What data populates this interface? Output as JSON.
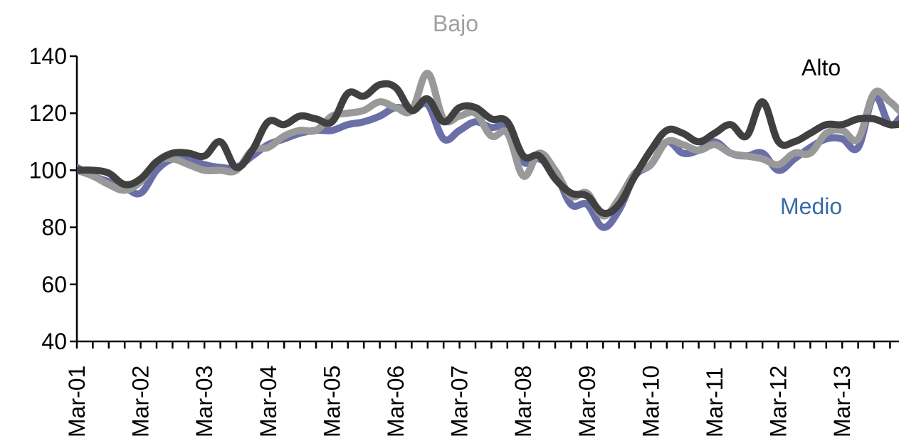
{
  "chart_data": {
    "type": "line",
    "title": "",
    "xlabel": "",
    "ylabel": "",
    "ylim": [
      40,
      140
    ],
    "yticks": [
      40,
      60,
      80,
      100,
      120,
      140
    ],
    "grid": false,
    "x_tick_labels": [
      "Mar-01",
      "Mar-02",
      "Mar-03",
      "Mar-04",
      "Mar-05",
      "Mar-06",
      "Mar-07",
      "Mar-08",
      "Mar-09",
      "Mar-10",
      "Mar-11",
      "Mar-12",
      "Mar-13"
    ],
    "x_range_quarters": [
      0,
      51
    ],
    "series": [
      {
        "name": "Alto",
        "color": "#404040",
        "points": [
          [
            0,
            100
          ],
          [
            1,
            100
          ],
          [
            2,
            99
          ],
          [
            3,
            95
          ],
          [
            4,
            97
          ],
          [
            5,
            103
          ],
          [
            6,
            106
          ],
          [
            7,
            106
          ],
          [
            8,
            105
          ],
          [
            9,
            110
          ],
          [
            10,
            101
          ],
          [
            11,
            107
          ],
          [
            12,
            117
          ],
          [
            13,
            116
          ],
          [
            14,
            119
          ],
          [
            15,
            118
          ],
          [
            16,
            117
          ],
          [
            17,
            127
          ],
          [
            18,
            126
          ],
          [
            19,
            130
          ],
          [
            20,
            129
          ],
          [
            21,
            121
          ],
          [
            22,
            125
          ],
          [
            23,
            117
          ],
          [
            24,
            122
          ],
          [
            25,
            122
          ],
          [
            26,
            118
          ],
          [
            27,
            117
          ],
          [
            28,
            105
          ],
          [
            29,
            105
          ],
          [
            30,
            97
          ],
          [
            31,
            92
          ],
          [
            32,
            91
          ],
          [
            33,
            85
          ],
          [
            34,
            88
          ],
          [
            35,
            98
          ],
          [
            36,
            107
          ],
          [
            37,
            114
          ],
          [
            38,
            113
          ],
          [
            39,
            110
          ],
          [
            40,
            113
          ],
          [
            41,
            116
          ],
          [
            42,
            112
          ],
          [
            43,
            124
          ],
          [
            44,
            110
          ],
          [
            45,
            110
          ],
          [
            46,
            113
          ],
          [
            47,
            116
          ],
          [
            48,
            116
          ],
          [
            49,
            118
          ],
          [
            50,
            118
          ],
          [
            51,
            116
          ],
          [
            52,
            116
          ],
          [
            53,
            113
          ]
        ]
      },
      {
        "name": "Medio",
        "color": "#6a6fa8",
        "points": [
          [
            0,
            101
          ],
          [
            1,
            98
          ],
          [
            2,
            96
          ],
          [
            3,
            94
          ],
          [
            4,
            92
          ],
          [
            5,
            100
          ],
          [
            6,
            104
          ],
          [
            7,
            104
          ],
          [
            8,
            102
          ],
          [
            9,
            101
          ],
          [
            10,
            101
          ],
          [
            11,
            105
          ],
          [
            12,
            109
          ],
          [
            13,
            111
          ],
          [
            14,
            113
          ],
          [
            15,
            114
          ],
          [
            16,
            114
          ],
          [
            17,
            116
          ],
          [
            18,
            117
          ],
          [
            19,
            119
          ],
          [
            20,
            122
          ],
          [
            21,
            121
          ],
          [
            22,
            123
          ],
          [
            23,
            111
          ],
          [
            24,
            114
          ],
          [
            25,
            117
          ],
          [
            26,
            115
          ],
          [
            27,
            115
          ],
          [
            28,
            103
          ],
          [
            29,
            104
          ],
          [
            30,
            99
          ],
          [
            31,
            88
          ],
          [
            32,
            88
          ],
          [
            33,
            80
          ],
          [
            34,
            86
          ],
          [
            35,
            98
          ],
          [
            36,
            102
          ],
          [
            37,
            110
          ],
          [
            38,
            106
          ],
          [
            39,
            107
          ],
          [
            40,
            110
          ],
          [
            41,
            106
          ],
          [
            42,
            105
          ],
          [
            43,
            106
          ],
          [
            44,
            100
          ],
          [
            45,
            104
          ],
          [
            46,
            108
          ],
          [
            47,
            111
          ],
          [
            48,
            111
          ],
          [
            49,
            108
          ],
          [
            50,
            126
          ],
          [
            51,
            116
          ],
          [
            52,
            120
          ],
          [
            53,
            117
          ]
        ]
      },
      {
        "name": "Bajo",
        "color": "#999999",
        "points": [
          [
            0,
            100
          ],
          [
            1,
            98
          ],
          [
            2,
            95
          ],
          [
            3,
            93
          ],
          [
            4,
            96
          ],
          [
            5,
            103
          ],
          [
            6,
            104
          ],
          [
            7,
            102
          ],
          [
            8,
            100
          ],
          [
            9,
            100
          ],
          [
            10,
            100
          ],
          [
            11,
            107
          ],
          [
            12,
            108
          ],
          [
            13,
            112
          ],
          [
            14,
            114
          ],
          [
            15,
            114
          ],
          [
            16,
            119
          ],
          [
            17,
            120
          ],
          [
            18,
            121
          ],
          [
            19,
            124
          ],
          [
            20,
            122
          ],
          [
            21,
            121
          ],
          [
            22,
            134
          ],
          [
            23,
            118
          ],
          [
            24,
            119
          ],
          [
            25,
            120
          ],
          [
            26,
            112
          ],
          [
            27,
            113
          ],
          [
            28,
            98
          ],
          [
            29,
            106
          ],
          [
            30,
            100
          ],
          [
            31,
            91
          ],
          [
            32,
            92
          ],
          [
            33,
            84
          ],
          [
            34,
            90
          ],
          [
            35,
            99
          ],
          [
            36,
            102
          ],
          [
            37,
            110
          ],
          [
            38,
            109
          ],
          [
            39,
            107
          ],
          [
            40,
            109
          ],
          [
            41,
            106
          ],
          [
            42,
            105
          ],
          [
            43,
            104
          ],
          [
            44,
            102
          ],
          [
            45,
            106
          ],
          [
            46,
            106
          ],
          [
            47,
            113
          ],
          [
            48,
            114
          ],
          [
            49,
            111
          ],
          [
            50,
            127
          ],
          [
            51,
            124
          ],
          [
            52,
            120
          ],
          [
            53,
            126
          ]
        ]
      }
    ],
    "annotations": [
      {
        "text": "Bajo",
        "color": "#a0a0a0"
      },
      {
        "text": "Alto",
        "color": "#000000"
      },
      {
        "text": "Medio",
        "color": "#3a6aa8"
      }
    ]
  }
}
